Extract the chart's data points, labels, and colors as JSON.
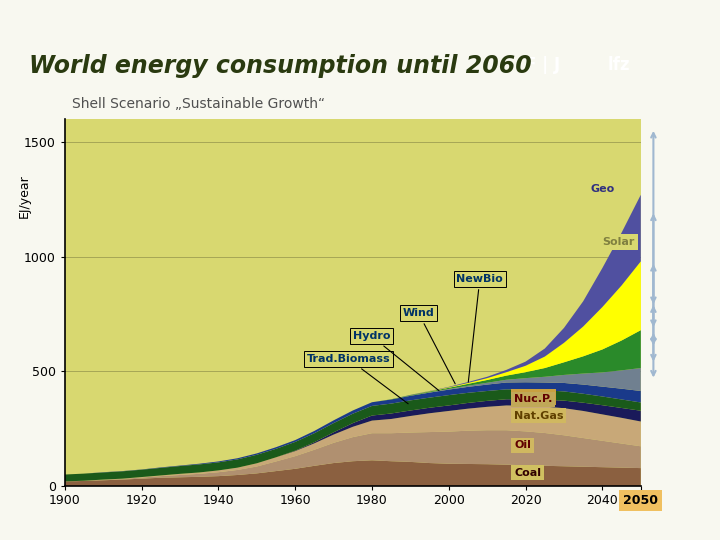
{
  "title": "World energy consumption until 2060",
  "subtitle": "Shell Scenario „Sustainable Growth“",
  "ylabel": "EJ/year",
  "bg_color": "#f0f0e0",
  "chart_bg": "#e8e8a0",
  "years": [
    1900,
    1905,
    1910,
    1915,
    1920,
    1925,
    1930,
    1935,
    1940,
    1945,
    1950,
    1955,
    1960,
    1965,
    1970,
    1975,
    1980,
    1985,
    1990,
    1995,
    2000,
    2005,
    2010,
    2015,
    2020,
    2025,
    2030,
    2035,
    2040,
    2045,
    2050
  ],
  "coal": [
    20,
    22,
    25,
    28,
    32,
    36,
    38,
    40,
    43,
    48,
    55,
    65,
    75,
    88,
    100,
    108,
    112,
    108,
    105,
    100,
    97,
    96,
    95,
    93,
    90,
    88,
    86,
    84,
    82,
    80,
    78
  ],
  "oil": [
    0,
    1,
    2,
    3,
    5,
    7,
    10,
    13,
    17,
    22,
    30,
    42,
    55,
    70,
    88,
    105,
    118,
    122,
    128,
    135,
    140,
    145,
    148,
    150,
    148,
    143,
    135,
    125,
    115,
    105,
    95
  ],
  "natgas": [
    0,
    0,
    1,
    1,
    2,
    3,
    5,
    6,
    8,
    10,
    14,
    18,
    22,
    28,
    36,
    45,
    55,
    62,
    72,
    82,
    90,
    96,
    102,
    108,
    112,
    115,
    118,
    118,
    115,
    112,
    108
  ],
  "nuclear": [
    0,
    0,
    0,
    0,
    0,
    0,
    0,
    0,
    0,
    0,
    0,
    0,
    2,
    5,
    10,
    16,
    22,
    24,
    24,
    24,
    24,
    25,
    26,
    27,
    28,
    30,
    33,
    36,
    40,
    43,
    47
  ],
  "trad_biomass": [
    30,
    31,
    31,
    32,
    32,
    33,
    34,
    35,
    35,
    36,
    37,
    37,
    38,
    39,
    40,
    41,
    42,
    43,
    44,
    44,
    45,
    44,
    43,
    43,
    42,
    41,
    40,
    39,
    38,
    37,
    36
  ],
  "hydro": [
    0,
    0,
    1,
    1,
    1,
    2,
    2,
    3,
    4,
    5,
    6,
    7,
    8,
    10,
    12,
    14,
    16,
    18,
    20,
    22,
    24,
    26,
    28,
    30,
    32,
    34,
    37,
    40,
    43,
    47,
    50
  ],
  "wind": [
    0,
    0,
    0,
    0,
    0,
    0,
    0,
    0,
    0,
    0,
    0,
    0,
    0,
    0,
    0,
    0,
    0,
    0,
    1,
    2,
    3,
    5,
    8,
    12,
    18,
    25,
    35,
    48,
    62,
    80,
    100
  ],
  "new_bio": [
    0,
    0,
    0,
    0,
    0,
    0,
    0,
    0,
    0,
    0,
    0,
    0,
    0,
    0,
    0,
    0,
    0,
    1,
    2,
    3,
    5,
    8,
    12,
    18,
    26,
    38,
    55,
    75,
    100,
    130,
    165
  ],
  "solar": [
    0,
    0,
    0,
    0,
    0,
    0,
    0,
    0,
    0,
    0,
    0,
    0,
    0,
    0,
    0,
    0,
    0,
    0,
    0,
    1,
    2,
    4,
    8,
    15,
    28,
    50,
    85,
    130,
    185,
    240,
    300
  ],
  "geo": [
    0,
    0,
    0,
    0,
    0,
    0,
    0,
    0,
    0,
    0,
    0,
    0,
    0,
    0,
    0,
    0,
    0,
    0,
    1,
    1,
    2,
    4,
    6,
    10,
    18,
    35,
    65,
    110,
    170,
    230,
    290
  ],
  "colors": {
    "coal": "#8B6040",
    "oil": "#b09070",
    "natgas": "#c8a878",
    "nuclear": "#1a1a5a",
    "trad_biomass": "#1a5a1a",
    "hydro": "#1a3a8a",
    "wind": "#708090",
    "new_bio": "#2a8a2a",
    "solar": "#ffff00",
    "geo": "#5050a0"
  },
  "yticks": [
    0,
    500,
    1000,
    1500
  ],
  "xticks": [
    1900,
    1920,
    1940,
    1960,
    1980,
    2000,
    2020,
    2040,
    2050
  ]
}
